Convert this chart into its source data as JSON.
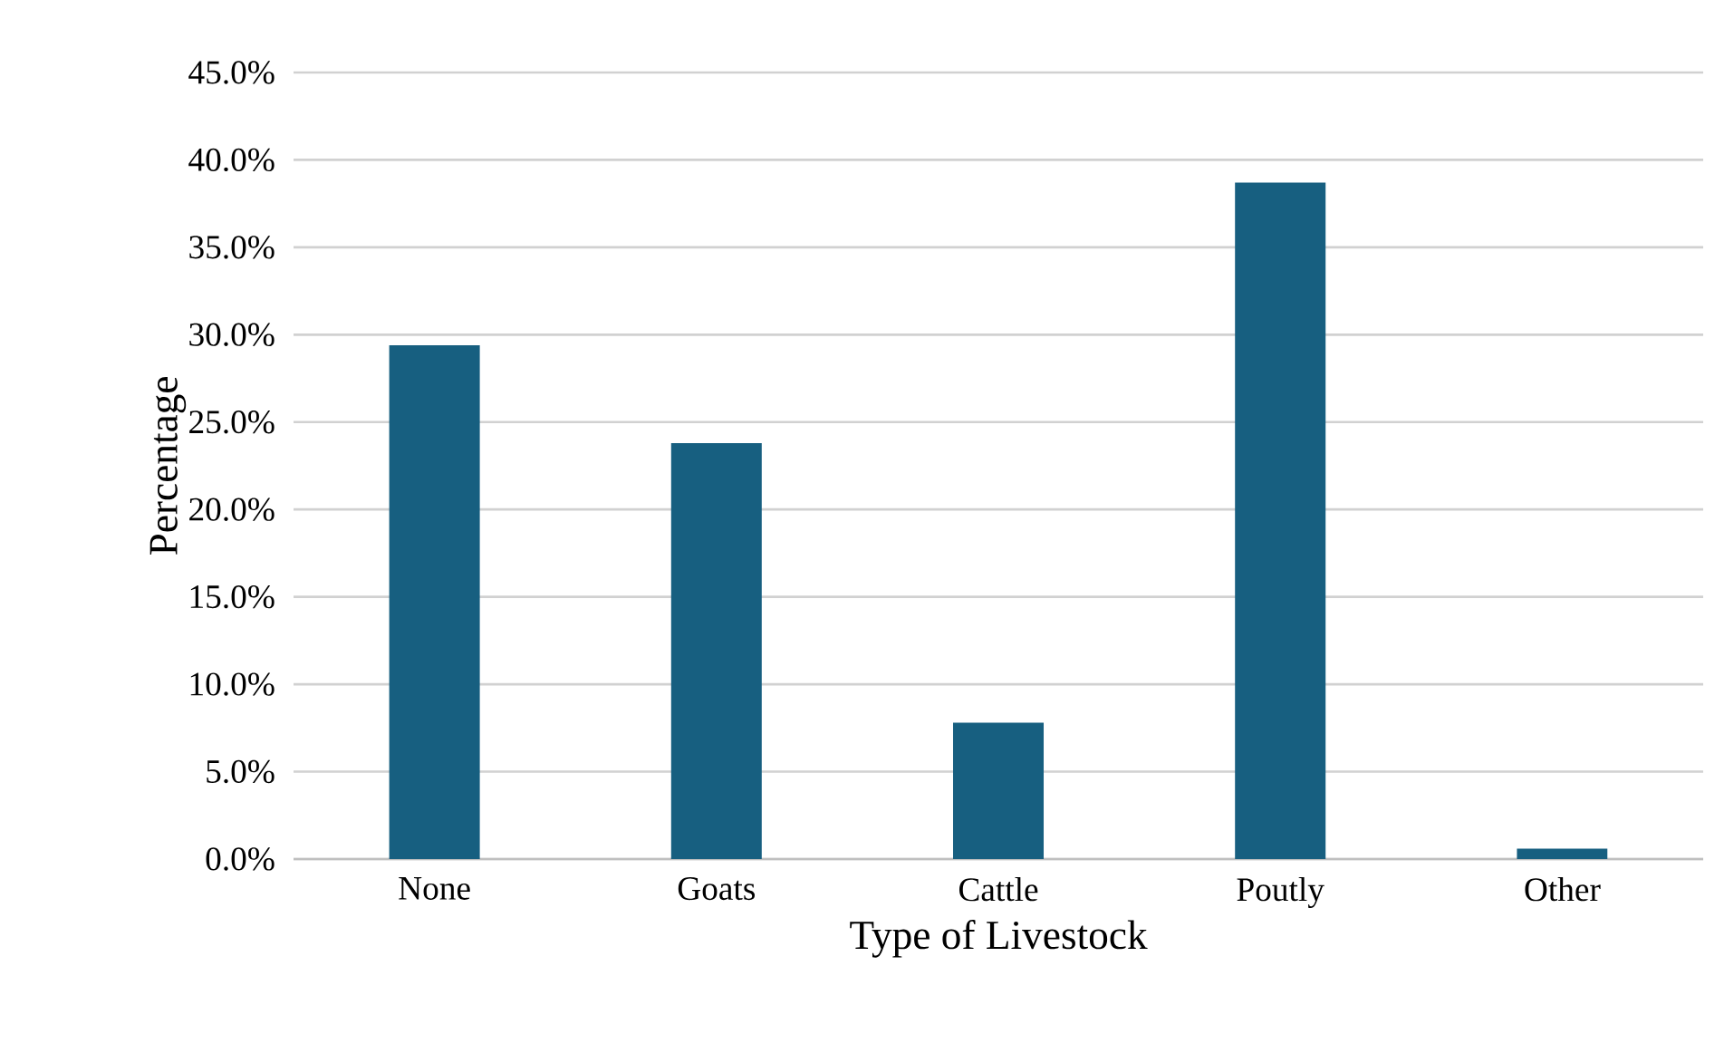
{
  "chart_data": {
    "type": "bar",
    "xlabel": "Type of Livestock",
    "ylabel": "Percentage",
    "categories": [
      "None",
      "Goats",
      "Cattle",
      "Poutly",
      "Other"
    ],
    "values": [
      29.4,
      23.8,
      7.8,
      38.7,
      0.6
    ],
    "color": "#175f80",
    "ylim": [
      0,
      45
    ],
    "yticks": [
      {
        "value": 0,
        "label": "0.0%"
      },
      {
        "value": 5,
        "label": "5.0%"
      },
      {
        "value": 10,
        "label": "10.0%"
      },
      {
        "value": 15,
        "label": "15.0%"
      },
      {
        "value": 20,
        "label": "20.0%"
      },
      {
        "value": 25,
        "label": "25.0%"
      },
      {
        "value": 30,
        "label": "30.0%"
      },
      {
        "value": 35,
        "label": "35.0%"
      },
      {
        "value": 40,
        "label": "40.0%"
      },
      {
        "value": 45,
        "label": "45.0%"
      }
    ],
    "grid": "y"
  }
}
